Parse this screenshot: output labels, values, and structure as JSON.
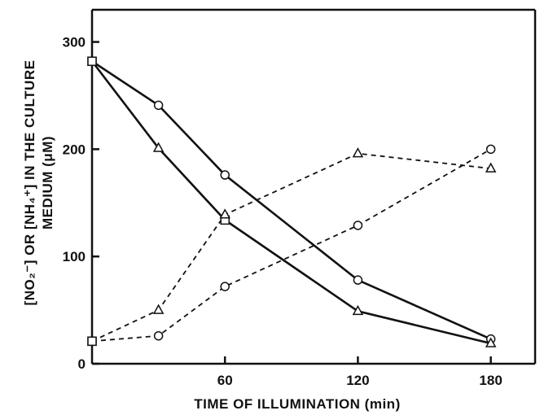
{
  "chart_data": {
    "type": "line",
    "title": "",
    "xlabel": "TIME OF ILLUMINATION (min)",
    "ylabel_line1": "[NO₂⁻] OR [NH₄⁺] IN THE CULTURE",
    "ylabel_line2": "MEDIUM (μM)",
    "xlim": [
      0,
      200
    ],
    "ylim": [
      0,
      330
    ],
    "xticks": [
      60,
      120,
      180
    ],
    "yticks": [
      0,
      100,
      200,
      300
    ],
    "grid": false,
    "legend": "none",
    "series": [
      {
        "marker": "circle",
        "dash": false,
        "points": [
          [
            0,
            282
          ],
          [
            30,
            241
          ],
          [
            60,
            176
          ],
          [
            120,
            78
          ],
          [
            180,
            23
          ]
        ]
      },
      {
        "marker": "triangle",
        "dash": false,
        "points": [
          [
            0,
            282
          ],
          [
            30,
            201
          ],
          [
            60,
            134
          ],
          [
            120,
            49
          ],
          [
            180,
            19
          ]
        ]
      },
      {
        "marker": "circle",
        "dash": true,
        "points": [
          [
            0,
            21
          ],
          [
            30,
            26
          ],
          [
            60,
            72
          ],
          [
            120,
            129
          ],
          [
            180,
            200
          ]
        ]
      },
      {
        "marker": "triangle",
        "dash": true,
        "points": [
          [
            0,
            21
          ],
          [
            30,
            50
          ],
          [
            60,
            139
          ],
          [
            120,
            196
          ],
          [
            180,
            182
          ]
        ]
      }
    ],
    "marker_square_points": [
      [
        0,
        282
      ],
      [
        0,
        21
      ],
      [
        60,
        134
      ]
    ]
  }
}
